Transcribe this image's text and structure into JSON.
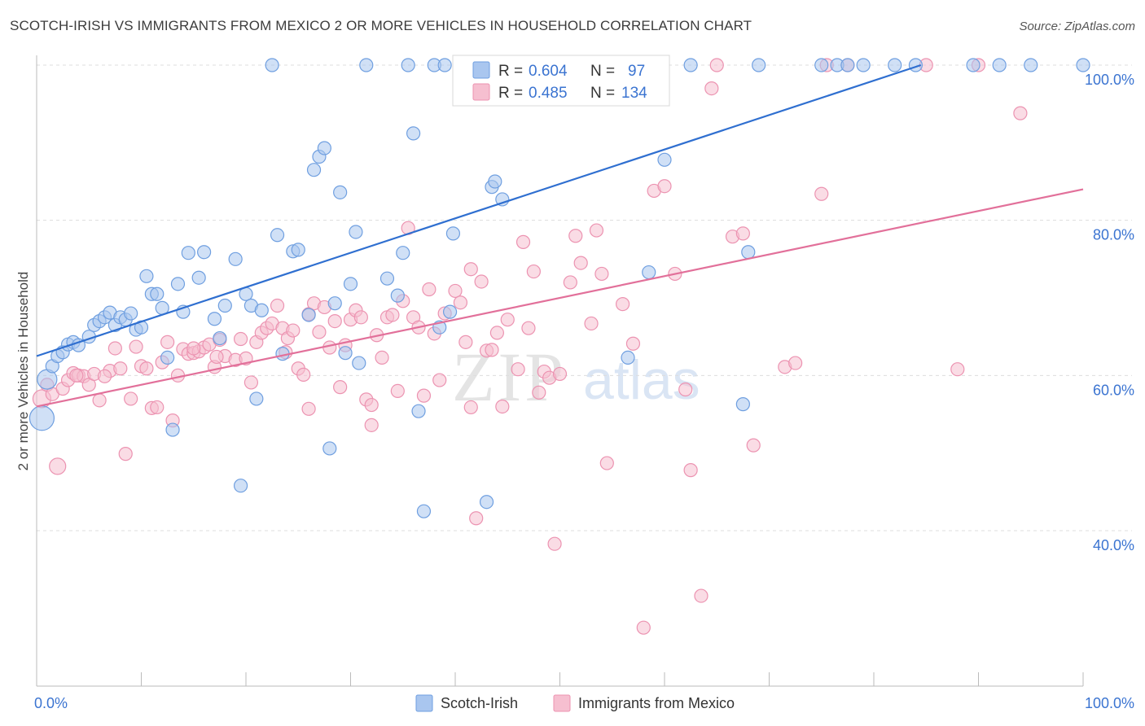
{
  "header": {
    "title": "SCOTCH-IRISH VS IMMIGRANTS FROM MEXICO 2 OR MORE VEHICLES IN HOUSEHOLD CORRELATION CHART",
    "source": "Source: ZipAtlas.com"
  },
  "watermark": {
    "zip": "ZIP",
    "atlas": "atlas"
  },
  "colors": {
    "blue_fill": "#a9c6ef",
    "blue_stroke": "#6f9fe0",
    "blue_line": "#2f6fd0",
    "pink_fill": "#f6bfd0",
    "pink_stroke": "#ec93b1",
    "pink_line": "#e2709a",
    "tick": "#3b74d1",
    "grid": "#dddddd"
  },
  "legend": {
    "rows": [
      {
        "r_label": "R =",
        "r_value": "0.604",
        "n_label": "N =",
        "n_value": "97"
      },
      {
        "r_label": "R =",
        "r_value": "0.485",
        "n_label": "N =",
        "n_value": "134"
      }
    ]
  },
  "chart_data": {
    "type": "scatter",
    "title": "SCOTCH-IRISH VS IMMIGRANTS FROM MEXICO 2 OR MORE VEHICLES IN HOUSEHOLD CORRELATION CHART",
    "xlabel": "",
    "ylabel": "2 or more Vehicles in Household",
    "xlim": [
      0,
      100
    ],
    "ylim": [
      18,
      102
    ],
    "x_tick_labels": [
      "0.0%",
      "100.0%"
    ],
    "y_ticks": [
      40,
      60,
      80,
      100
    ],
    "y_tick_labels": [
      "40.0%",
      "60.0%",
      "80.0%",
      "100.0%"
    ],
    "grid": true,
    "legend_position": "top-center",
    "series": [
      {
        "name": "Scotch-Irish",
        "color": "#a9c6ef",
        "trend": {
          "x": [
            0,
            84.5
          ],
          "y": [
            62.5,
            100
          ]
        },
        "points": [
          [
            0.5,
            54.5,
            15
          ],
          [
            1.0,
            59.5,
            12
          ],
          [
            1.5,
            61.2,
            8
          ],
          [
            2.0,
            62.5,
            8
          ],
          [
            2.5,
            63.0,
            8
          ],
          [
            3.0,
            64.0,
            8
          ],
          [
            3.5,
            64.3,
            8
          ],
          [
            4.0,
            63.9,
            8
          ],
          [
            5.0,
            65.0,
            8
          ],
          [
            5.5,
            66.5,
            8
          ],
          [
            6.0,
            67.0,
            8
          ],
          [
            6.5,
            67.5,
            8
          ],
          [
            7.0,
            68.1,
            8
          ],
          [
            7.5,
            66.5,
            8
          ],
          [
            8.0,
            67.5,
            8
          ],
          [
            8.5,
            67.2,
            8
          ],
          [
            9.0,
            68.0,
            8
          ],
          [
            9.5,
            65.9,
            8
          ],
          [
            10.0,
            66.2,
            8
          ],
          [
            10.5,
            72.8,
            8
          ],
          [
            11.0,
            70.5,
            8
          ],
          [
            11.5,
            70.5,
            8
          ],
          [
            12.0,
            68.7,
            8
          ],
          [
            12.5,
            62.3,
            8
          ],
          [
            13.0,
            53.0,
            8
          ],
          [
            13.5,
            71.8,
            8
          ],
          [
            14.0,
            68.2,
            8
          ],
          [
            14.5,
            75.8,
            8
          ],
          [
            15.5,
            72.6,
            8
          ],
          [
            16.0,
            75.9,
            8
          ],
          [
            17.0,
            67.3,
            8
          ],
          [
            17.5,
            64.8,
            8
          ],
          [
            18.0,
            69.0,
            8
          ],
          [
            19.0,
            75.0,
            8
          ],
          [
            19.5,
            45.8,
            8
          ],
          [
            20.0,
            70.5,
            8
          ],
          [
            20.5,
            69.0,
            8
          ],
          [
            21.0,
            57.0,
            8
          ],
          [
            21.5,
            68.4,
            8
          ],
          [
            22.5,
            100.0,
            8
          ],
          [
            23.0,
            78.1,
            8
          ],
          [
            23.5,
            62.8,
            8
          ],
          [
            24.5,
            76.0,
            8
          ],
          [
            25.0,
            76.2,
            8
          ],
          [
            26.0,
            67.8,
            8
          ],
          [
            26.5,
            86.5,
            8
          ],
          [
            27.0,
            88.2,
            8
          ],
          [
            27.5,
            89.3,
            8
          ],
          [
            28.0,
            50.6,
            8
          ],
          [
            28.5,
            69.3,
            8
          ],
          [
            29.0,
            83.6,
            8
          ],
          [
            29.5,
            62.9,
            8
          ],
          [
            30.0,
            71.8,
            8
          ],
          [
            30.5,
            78.5,
            8
          ],
          [
            30.8,
            61.6,
            8
          ],
          [
            31.5,
            100.0,
            8
          ],
          [
            33.5,
            72.5,
            8
          ],
          [
            34.5,
            70.3,
            8
          ],
          [
            35.0,
            75.8,
            8
          ],
          [
            35.5,
            100.0,
            8
          ],
          [
            36.0,
            91.2,
            8
          ],
          [
            36.5,
            55.4,
            8
          ],
          [
            37.0,
            42.5,
            8
          ],
          [
            38.0,
            100.0,
            8
          ],
          [
            38.5,
            66.2,
            8
          ],
          [
            39.0,
            100.0,
            8
          ],
          [
            39.5,
            68.2,
            8
          ],
          [
            39.8,
            78.3,
            8
          ],
          [
            40.5,
            100.0,
            8
          ],
          [
            41.5,
            100.0,
            8
          ],
          [
            43.0,
            43.7,
            8
          ],
          [
            43.5,
            84.3,
            8
          ],
          [
            43.8,
            85.0,
            8
          ],
          [
            44.5,
            82.7,
            8
          ],
          [
            46.0,
            100.0,
            8
          ],
          [
            50.5,
            100.0,
            8
          ],
          [
            52.0,
            100.0,
            8
          ],
          [
            53.5,
            100.0,
            8
          ],
          [
            56.5,
            62.3,
            8
          ],
          [
            58.5,
            73.3,
            8
          ],
          [
            60.0,
            87.8,
            8
          ],
          [
            62.5,
            100.0,
            8
          ],
          [
            67.5,
            56.3,
            8
          ],
          [
            68.0,
            75.9,
            8
          ],
          [
            69.0,
            100.0,
            8
          ],
          [
            75.0,
            100.0,
            8
          ],
          [
            76.5,
            100.0,
            8
          ],
          [
            77.5,
            100.0,
            8
          ],
          [
            79.0,
            100.0,
            8
          ],
          [
            82.0,
            100.0,
            8
          ],
          [
            84.0,
            100.0,
            8
          ],
          [
            89.5,
            100.0,
            8
          ],
          [
            92.0,
            100.0,
            8
          ],
          [
            95.0,
            100.0,
            8
          ],
          [
            100.0,
            100.0,
            8
          ]
        ]
      },
      {
        "name": "Immigrants from Mexico",
        "color": "#f6bfd0",
        "trend": {
          "x": [
            0,
            100
          ],
          "y": [
            56,
            84
          ]
        },
        "points": [
          [
            0.5,
            57.0,
            11
          ],
          [
            1.0,
            58.8,
            8
          ],
          [
            1.5,
            57.6,
            8
          ],
          [
            2.0,
            48.3,
            10
          ],
          [
            2.5,
            58.3,
            8
          ],
          [
            3.0,
            59.4,
            8
          ],
          [
            3.5,
            60.3,
            8
          ],
          [
            4.0,
            60.0,
            8
          ],
          [
            4.5,
            59.9,
            8
          ],
          [
            5.0,
            58.8,
            8
          ],
          [
            5.5,
            60.2,
            8
          ],
          [
            6.0,
            56.8,
            8
          ],
          [
            7.0,
            60.6,
            8
          ],
          [
            7.5,
            63.5,
            8
          ],
          [
            8.0,
            60.9,
            8
          ],
          [
            8.5,
            49.9,
            8
          ],
          [
            9.0,
            57.0,
            8
          ],
          [
            9.5,
            63.7,
            8
          ],
          [
            10.0,
            61.2,
            8
          ],
          [
            10.5,
            60.9,
            8
          ],
          [
            11.0,
            55.8,
            8
          ],
          [
            11.5,
            55.9,
            8
          ],
          [
            12.0,
            61.7,
            8
          ],
          [
            12.5,
            64.3,
            8
          ],
          [
            13.0,
            54.2,
            8
          ],
          [
            13.5,
            60.0,
            8
          ],
          [
            14.0,
            63.4,
            8
          ],
          [
            14.5,
            62.8,
            8
          ],
          [
            15.0,
            62.9,
            8
          ],
          [
            15.5,
            63.1,
            8
          ],
          [
            16.0,
            63.6,
            8
          ],
          [
            16.5,
            64.0,
            8
          ],
          [
            17.0,
            61.1,
            8
          ],
          [
            17.5,
            64.6,
            8
          ],
          [
            18.0,
            62.5,
            8
          ],
          [
            19.0,
            62.0,
            8
          ],
          [
            19.5,
            64.7,
            8
          ],
          [
            20.0,
            62.2,
            8
          ],
          [
            20.5,
            59.1,
            8
          ],
          [
            21.0,
            64.3,
            8
          ],
          [
            21.5,
            65.5,
            8
          ],
          [
            22.0,
            66.1,
            8
          ],
          [
            22.5,
            66.7,
            8
          ],
          [
            23.0,
            69.0,
            8
          ],
          [
            23.5,
            66.1,
            8
          ],
          [
            24.0,
            64.8,
            8
          ],
          [
            24.5,
            65.8,
            8
          ],
          [
            25.0,
            60.9,
            8
          ],
          [
            25.5,
            60.1,
            8
          ],
          [
            26.0,
            67.9,
            8
          ],
          [
            26.5,
            69.3,
            8
          ],
          [
            27.0,
            65.6,
            8
          ],
          [
            27.5,
            68.8,
            8
          ],
          [
            28.0,
            63.6,
            8
          ],
          [
            28.5,
            67.0,
            8
          ],
          [
            29.0,
            58.5,
            8
          ],
          [
            29.5,
            63.9,
            8
          ],
          [
            30.0,
            67.2,
            8
          ],
          [
            30.5,
            68.4,
            8
          ],
          [
            31.0,
            67.5,
            8
          ],
          [
            31.5,
            56.9,
            8
          ],
          [
            32.0,
            53.6,
            8
          ],
          [
            32.5,
            65.2,
            8
          ],
          [
            33.0,
            62.3,
            8
          ],
          [
            33.5,
            67.5,
            8
          ],
          [
            34.0,
            67.8,
            8
          ],
          [
            34.5,
            58.0,
            8
          ],
          [
            35.0,
            69.6,
            8
          ],
          [
            35.5,
            79.0,
            8
          ],
          [
            36.0,
            67.5,
            8
          ],
          [
            36.5,
            66.2,
            8
          ],
          [
            37.0,
            57.4,
            8
          ],
          [
            37.5,
            71.1,
            8
          ],
          [
            38.0,
            65.4,
            8
          ],
          [
            38.5,
            59.4,
            8
          ],
          [
            39.0,
            68.0,
            8
          ],
          [
            40.0,
            70.9,
            8
          ],
          [
            40.5,
            69.4,
            8
          ],
          [
            41.0,
            64.3,
            8
          ],
          [
            41.5,
            73.7,
            8
          ],
          [
            42.0,
            41.6,
            8
          ],
          [
            42.5,
            72.1,
            8
          ],
          [
            43.0,
            63.2,
            8
          ],
          [
            43.5,
            63.3,
            8
          ],
          [
            44.0,
            65.5,
            8
          ],
          [
            45.0,
            67.2,
            8
          ],
          [
            46.0,
            60.8,
            8
          ],
          [
            46.5,
            77.2,
            8
          ],
          [
            47.0,
            66.1,
            8
          ],
          [
            47.5,
            73.4,
            8
          ],
          [
            48.0,
            57.8,
            8
          ],
          [
            48.5,
            60.5,
            8
          ],
          [
            49.0,
            59.7,
            8
          ],
          [
            49.5,
            38.3,
            8
          ],
          [
            50.0,
            60.2,
            8
          ],
          [
            51.0,
            72.0,
            8
          ],
          [
            51.5,
            78.0,
            8
          ],
          [
            52.0,
            74.5,
            8
          ],
          [
            53.0,
            66.7,
            8
          ],
          [
            53.5,
            78.7,
            8
          ],
          [
            54.0,
            73.1,
            8
          ],
          [
            54.5,
            48.7,
            8
          ],
          [
            56.0,
            69.2,
            8
          ],
          [
            57.0,
            64.1,
            8
          ],
          [
            58.0,
            27.5,
            8
          ],
          [
            59.0,
            83.8,
            8
          ],
          [
            60.0,
            84.4,
            8
          ],
          [
            61.0,
            73.1,
            8
          ],
          [
            62.0,
            58.2,
            8
          ],
          [
            62.5,
            47.8,
            8
          ],
          [
            63.5,
            31.6,
            8
          ],
          [
            64.5,
            97.0,
            8
          ],
          [
            65.0,
            100.0,
            8
          ],
          [
            66.5,
            77.9,
            8
          ],
          [
            67.5,
            78.3,
            8
          ],
          [
            68.5,
            51.0,
            8
          ],
          [
            71.5,
            61.1,
            8
          ],
          [
            72.5,
            61.6,
            8
          ],
          [
            75.0,
            83.4,
            8
          ],
          [
            75.5,
            100.0,
            8
          ],
          [
            77.5,
            100.0,
            8
          ],
          [
            85.0,
            100.0,
            8
          ],
          [
            88.0,
            60.8,
            8
          ],
          [
            90.0,
            100.0,
            8
          ],
          [
            94.0,
            93.8,
            8
          ],
          [
            32.0,
            56.2,
            8
          ],
          [
            44.5,
            56.0,
            8
          ],
          [
            6.5,
            59.9,
            8
          ],
          [
            3.8,
            60.0,
            8
          ],
          [
            23.8,
            63.0,
            8
          ],
          [
            41.5,
            55.9,
            8
          ],
          [
            17.2,
            62.4,
            8
          ],
          [
            26.0,
            55.7,
            8
          ],
          [
            15.0,
            63.5,
            8
          ]
        ]
      }
    ]
  }
}
